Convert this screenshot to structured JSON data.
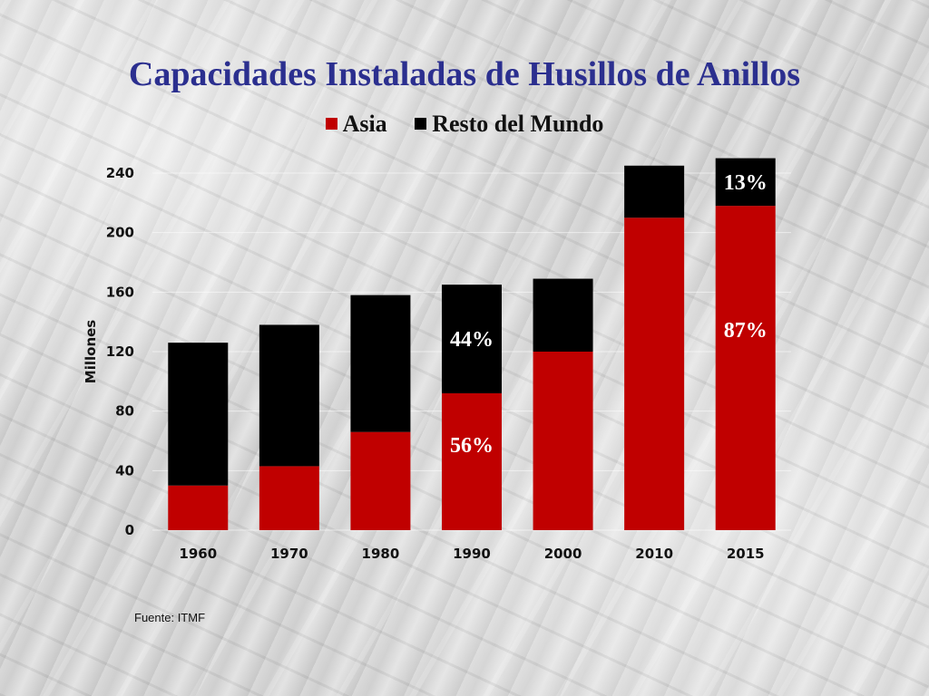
{
  "slide": {
    "title": "Capacidades Instaladas de Husillos de Anillos",
    "source": "Fuente: ITMF"
  },
  "colors": {
    "asia": "#c00000",
    "rest": "#000000",
    "title": "#2b2f8f"
  },
  "chart_data": {
    "type": "bar",
    "stacked": true,
    "title": "Capacidades Instaladas de Husillos de Anillos",
    "xlabel": "",
    "ylabel": "Millones",
    "ylim": [
      0,
      240
    ],
    "yticks": [
      0,
      40,
      80,
      120,
      160,
      200,
      240
    ],
    "grid": true,
    "legend_position": "top",
    "categories": [
      "1960",
      "1970",
      "1980",
      "1990",
      "2000",
      "2010",
      "2015"
    ],
    "series": [
      {
        "name": "Asia",
        "color": "#c00000",
        "values": [
          30,
          43,
          66,
          92,
          120,
          210,
          218
        ]
      },
      {
        "name": "Resto del Mundo",
        "color": "#000000",
        "values": [
          96,
          95,
          92,
          73,
          49,
          35,
          32
        ]
      }
    ],
    "annotations": [
      {
        "category": "1990",
        "series": "Asia",
        "text": "56%",
        "color": "#ffffff"
      },
      {
        "category": "1990",
        "series": "Resto del Mundo",
        "text": "44%",
        "color": "#ffffff"
      },
      {
        "category": "2015",
        "series": "Asia",
        "text": "87%",
        "color": "#ffffff"
      },
      {
        "category": "2015",
        "series": "Resto del Mundo",
        "text": "13%",
        "color": "#ffffff"
      }
    ]
  }
}
